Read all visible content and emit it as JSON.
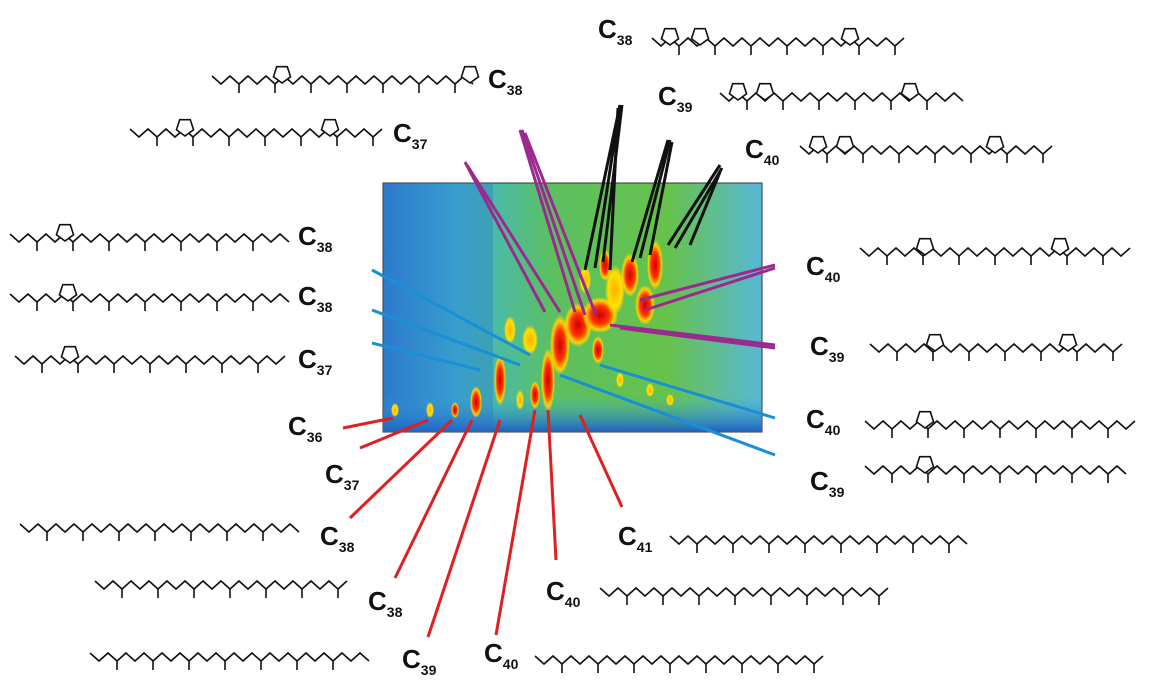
{
  "labels": [
    {
      "element": "C",
      "number": "38"
    },
    {
      "element": "C",
      "number": "38"
    },
    {
      "element": "C",
      "number": "39"
    },
    {
      "element": "C",
      "number": "37"
    },
    {
      "element": "C",
      "number": "40"
    },
    {
      "element": "C",
      "number": "38"
    },
    {
      "element": "C",
      "number": "38"
    },
    {
      "element": "C",
      "number": "37"
    },
    {
      "element": "C",
      "number": "40"
    },
    {
      "element": "C",
      "number": "39"
    },
    {
      "element": "C",
      "number": "40"
    },
    {
      "element": "C",
      "number": "39"
    },
    {
      "element": "C",
      "number": "36"
    },
    {
      "element": "C",
      "number": "37"
    },
    {
      "element": "C",
      "number": "38"
    },
    {
      "element": "C",
      "number": "38"
    },
    {
      "element": "C",
      "number": "39"
    },
    {
      "element": "C",
      "number": "40"
    },
    {
      "element": "C",
      "number": "40"
    },
    {
      "element": "C",
      "number": "41"
    }
  ]
}
